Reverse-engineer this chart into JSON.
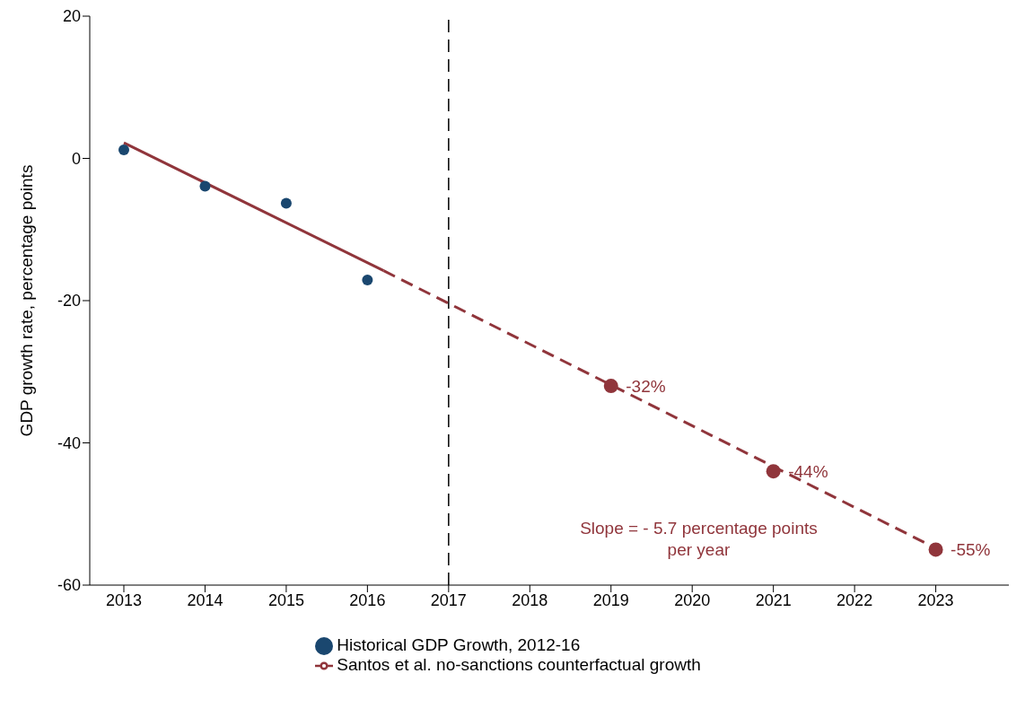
{
  "chart_data": {
    "type": "line",
    "ylabel": "GDP growth rate, percentage points",
    "xlim": [
      2012.58,
      2023.9
    ],
    "xticks": [
      2013,
      2014,
      2015,
      2016,
      2017,
      2018,
      2019,
      2020,
      2021,
      2022,
      2023
    ],
    "ylim": [
      -60,
      20
    ],
    "yticks": [
      -60,
      -40,
      -20,
      0,
      20
    ],
    "grid": false,
    "legend": "bottom",
    "series": [
      {
        "name": "Historical GDP Growth, 2012-16",
        "type": "scatter",
        "color": "#1a476f",
        "marker": "circle",
        "x": [
          2013,
          2014,
          2015,
          2016
        ],
        "values": [
          1.2,
          -3.9,
          -6.3,
          -17.1
        ]
      },
      {
        "name": "Santos et al. no-sanctions counterfactual growth",
        "color": "#90353b",
        "line_style": "solid",
        "x": [
          2013,
          2016.2
        ],
        "values": [
          2.2,
          -15.8
        ]
      },
      {
        "color": "#90353b",
        "line_style": "dashed",
        "x": [
          2016.2,
          2023
        ],
        "values": [
          -15.8,
          -54.8
        ]
      },
      {
        "type": "scatter",
        "color": "#90353b",
        "marker": "circle",
        "x": [
          2019,
          2021,
          2023
        ],
        "values": [
          -32,
          -44,
          -55
        ],
        "value_labels": [
          "-32%",
          "-44%",
          "-55%"
        ]
      }
    ],
    "ref_lines": [
      {
        "axis": "x",
        "value": 2017,
        "color": "#000000",
        "line_style": "dashed"
      }
    ],
    "annotations": [
      "Slope = - 5.7 percentage points per year"
    ]
  }
}
